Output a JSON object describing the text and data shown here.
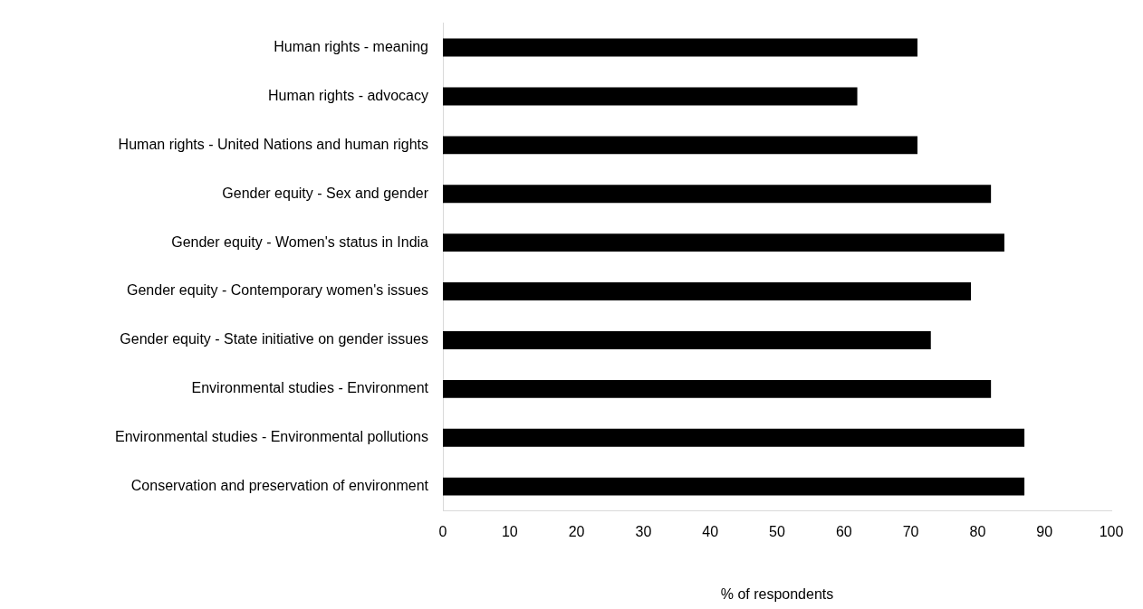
{
  "chart_data": {
    "type": "bar",
    "orientation": "horizontal",
    "xlabel": "% of respondents",
    "categories": [
      "Human rights - meaning",
      "Human rights - advocacy",
      "Human rights - United Nations and human rights",
      "Gender equity - Sex and gender",
      "Gender equity - Women's status in India",
      "Gender equity - Contemporary women's issues",
      "Gender equity - State initiative on gender issues",
      "Environmental studies - Environment",
      "Environmental studies - Environmental pollutions",
      "Conservation and preservation of environment"
    ],
    "values": [
      71,
      62,
      71,
      82,
      84,
      79,
      73,
      82,
      87,
      87
    ],
    "color": "#000000",
    "xlim": [
      0,
      100
    ],
    "xticks": [
      0,
      10,
      20,
      30,
      40,
      50,
      60,
      70,
      80,
      90,
      100
    ],
    "grid": false,
    "legend": false
  }
}
